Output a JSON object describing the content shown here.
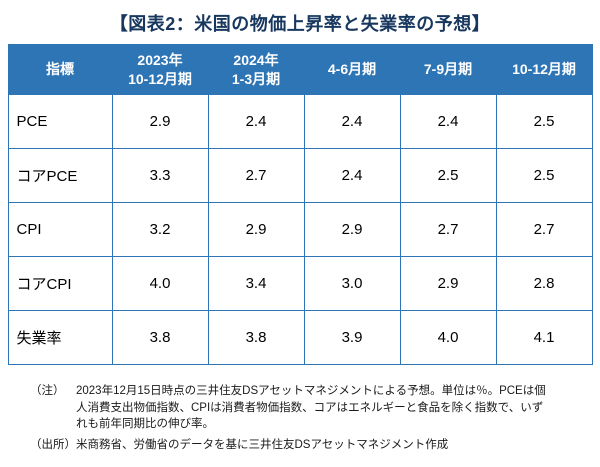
{
  "title": "【図表2：米国の物価上昇率と失業率の予想】",
  "colors": {
    "header_blue": "#2e75b6",
    "title_navy": "#17375e",
    "border_blue": "#2e75b6"
  },
  "table": {
    "headers": [
      "指標",
      "2023年\n10-12月期",
      "2024年\n1-3月期",
      "4-6月期",
      "7-9月期",
      "10-12月期"
    ],
    "rows": [
      {
        "label": "PCE",
        "values": [
          "2.9",
          "2.4",
          "2.4",
          "2.4",
          "2.5"
        ]
      },
      {
        "label": "コアPCE",
        "values": [
          "3.3",
          "2.7",
          "2.4",
          "2.5",
          "2.5"
        ]
      },
      {
        "label": "CPI",
        "values": [
          "3.2",
          "2.9",
          "2.9",
          "2.7",
          "2.7"
        ]
      },
      {
        "label": "コアCPI",
        "values": [
          "4.0",
          "3.4",
          "3.0",
          "2.9",
          "2.8"
        ]
      },
      {
        "label": "失業率",
        "values": [
          "3.8",
          "3.8",
          "3.9",
          "4.0",
          "4.1"
        ]
      }
    ]
  },
  "notes": {
    "note_label": "（注）",
    "note_text": "2023年12月15日時点の三井住友DSアセットマネジメントによる予想。単位は％。PCEは個人消費支出物価指数、CPIは消費者物価指数、コアはエネルギーと食品を除く指数で、いずれも前年同期比の伸び率。",
    "source_label": "（出所）",
    "source_text": "米商務省、労働省のデータを基に三井住友DSアセットマネジメント作成"
  },
  "chart_data": {
    "type": "table",
    "title": "【図表2：米国の物価上昇率と失業率の予想】",
    "columns": [
      "指標",
      "2023年10-12月期",
      "2024年1-3月期",
      "4-6月期",
      "7-9月期",
      "10-12月期"
    ],
    "rows": [
      [
        "PCE",
        2.9,
        2.4,
        2.4,
        2.4,
        2.5
      ],
      [
        "コアPCE",
        3.3,
        2.7,
        2.4,
        2.5,
        2.5
      ],
      [
        "CPI",
        3.2,
        2.9,
        2.9,
        2.7,
        2.7
      ],
      [
        "コアCPI",
        4.0,
        3.4,
        3.0,
        2.9,
        2.8
      ],
      [
        "失業率",
        3.8,
        3.8,
        3.9,
        4.0,
        4.1
      ]
    ],
    "unit": "%",
    "notes": "2023年12月15日時点の三井住友DSアセットマネジメントによる予想。単位は％。PCEは個人消費支出物価指数、CPIは消費者物価指数、コアはエネルギーと食品を除く指数で、いずれも前年同期比の伸び率。",
    "source": "米商務省、労働省のデータを基に三井住友DSアセットマネジメント作成"
  }
}
